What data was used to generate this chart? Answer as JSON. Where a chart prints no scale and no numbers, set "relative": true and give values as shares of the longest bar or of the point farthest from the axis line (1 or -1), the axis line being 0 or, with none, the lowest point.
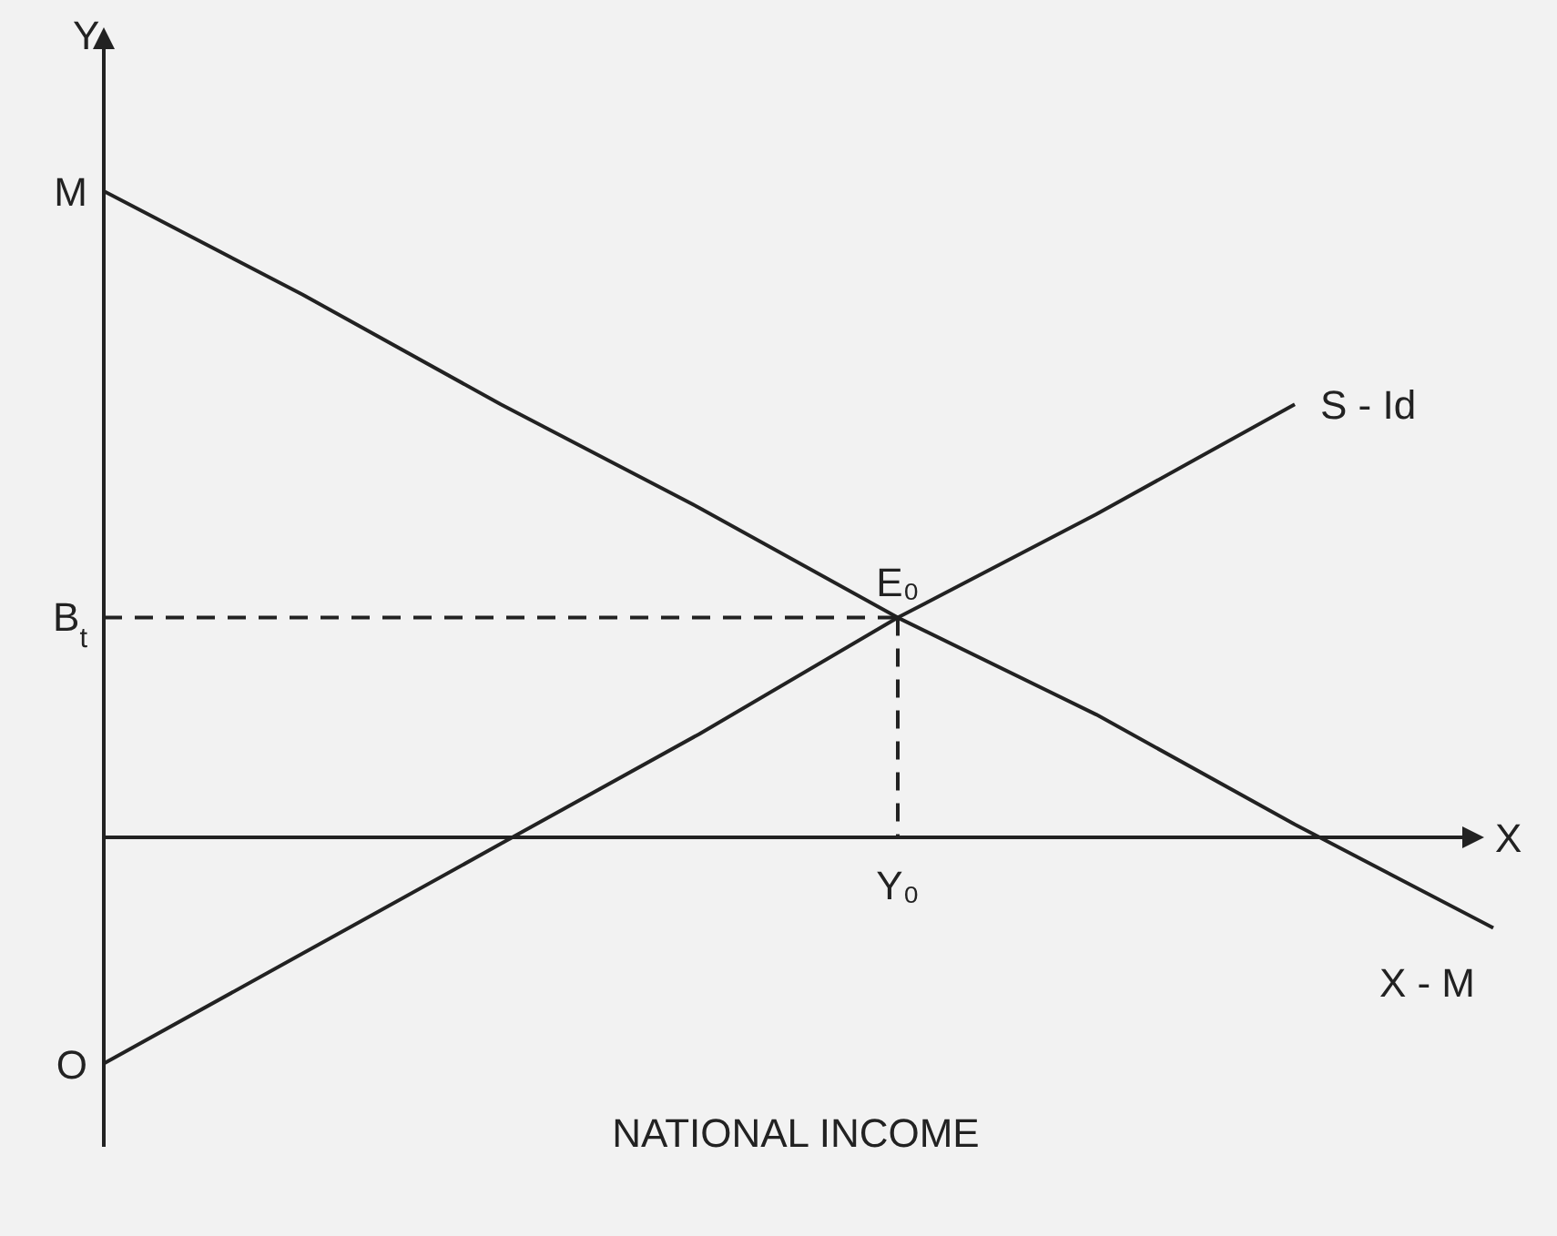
{
  "chart_data": {
    "type": "line",
    "relative": true,
    "xlabel": "NATIONAL INCOME",
    "ylabel": "Y",
    "categories": [
      null,
      null,
      null,
      null,
      null,
      null,
      null,
      null
    ],
    "series": [
      {
        "name": "S - Id",
        "color": "#222222",
        "values": [
          -0.35,
          -0.18,
          -0.01,
          0.16,
          0.34,
          0.5,
          0.67,
          null
        ]
      },
      {
        "name": "X - M",
        "color": "#222222",
        "values": [
          1.0,
          0.84,
          0.67,
          0.51,
          0.34,
          0.19,
          0.02,
          -0.14
        ]
      }
    ],
    "ref_lines": [
      {
        "axis": "y",
        "value": 0.34,
        "label": "B$_{t}$",
        "line_style": "dashed"
      }
    ],
    "annotations": [
      "E₀",
      "M",
      "O",
      "X",
      "Y₀"
    ],
    "marker": "none",
    "line_style": "solid",
    "legend": false
  }
}
